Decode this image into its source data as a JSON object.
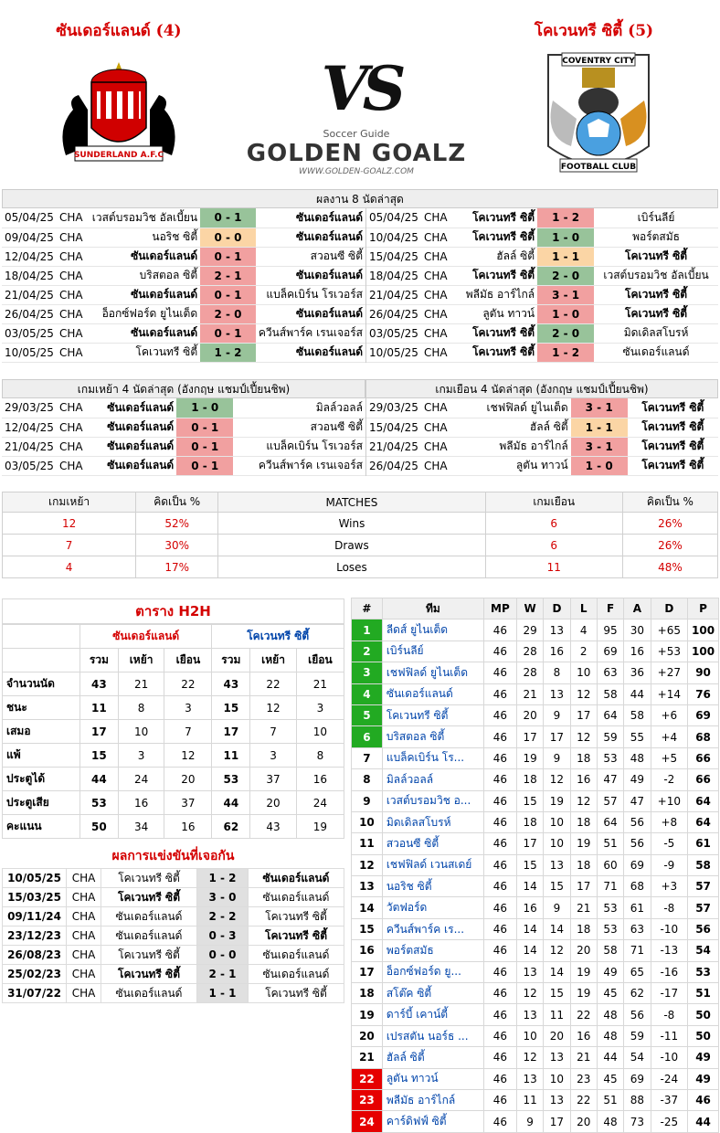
{
  "header": {
    "home_title": "ซันเดอร์แลนด์ (4)",
    "away_title": "โคเวนทรี ซิตี้ (5)",
    "vs": "VS",
    "brand_small": "Soccer Guide",
    "brand_big": "GOLDEN GOALZ",
    "brand_url": "WWW.GOLDEN-GOALZ.COM",
    "home_crest_text": "SUNDERLAND A.F.C",
    "away_crest_top": "COVENTRY CITY",
    "away_crest_bottom": "FOOTBALL CLUB",
    "colors": {
      "accent_red": "#d40000",
      "win": "#98c39a",
      "lose": "#f1a0a0",
      "draw": "#fbd5a5",
      "promotion": "#22aa22",
      "relegation": "#e60000"
    }
  },
  "last8": {
    "title": "ผลงาน 8 นัดล่าสุด",
    "home": [
      {
        "date": "05/04/25",
        "comp": "CHA",
        "h": "เวสต์บรอมวิช อัลเบี้ยน",
        "s": "0 - 1",
        "a": "ซันเดอร์แลนด์",
        "r": "win",
        "bh": false,
        "ba": true
      },
      {
        "date": "09/04/25",
        "comp": "CHA",
        "h": "นอริช ซิตี้",
        "s": "0 - 0",
        "a": "ซันเดอร์แลนด์",
        "r": "draw",
        "bh": false,
        "ba": true
      },
      {
        "date": "12/04/25",
        "comp": "CHA",
        "h": "ซันเดอร์แลนด์",
        "s": "0 - 1",
        "a": "สวอนซี ซิตี้",
        "r": "lose",
        "bh": true,
        "ba": false
      },
      {
        "date": "18/04/25",
        "comp": "CHA",
        "h": "บริสตอล ซิตี้",
        "s": "2 - 1",
        "a": "ซันเดอร์แลนด์",
        "r": "lose",
        "bh": false,
        "ba": true
      },
      {
        "date": "21/04/25",
        "comp": "CHA",
        "h": "ซันเดอร์แลนด์",
        "s": "0 - 1",
        "a": "แบล็คเบิร์น โรเวอร์ส",
        "r": "lose",
        "bh": true,
        "ba": false
      },
      {
        "date": "26/04/25",
        "comp": "CHA",
        "h": "อ็อกซ์ฟอร์ด ยูไนเต็ด",
        "s": "2 - 0",
        "a": "ซันเดอร์แลนด์",
        "r": "lose",
        "bh": false,
        "ba": true
      },
      {
        "date": "03/05/25",
        "comp": "CHA",
        "h": "ซันเดอร์แลนด์",
        "s": "0 - 1",
        "a": "ควีนส์พาร์ค เรนเจอร์ส",
        "r": "lose",
        "bh": true,
        "ba": false
      },
      {
        "date": "10/05/25",
        "comp": "CHA",
        "h": "โคเวนทรี ซิตี้",
        "s": "1 - 2",
        "a": "ซันเดอร์แลนด์",
        "r": "win",
        "bh": false,
        "ba": true
      }
    ],
    "away": [
      {
        "date": "05/04/25",
        "comp": "CHA",
        "h": "โคเวนทรี ซิตี้",
        "s": "1 - 2",
        "a": "เบิร์นลีย์",
        "r": "lose",
        "bh": true,
        "ba": false
      },
      {
        "date": "10/04/25",
        "comp": "CHA",
        "h": "โคเวนทรี ซิตี้",
        "s": "1 - 0",
        "a": "พอร์ตสมัธ",
        "r": "win",
        "bh": true,
        "ba": false
      },
      {
        "date": "15/04/25",
        "comp": "CHA",
        "h": "ฮัลล์ ซิตี้",
        "s": "1 - 1",
        "a": "โคเวนทรี ซิตี้",
        "r": "draw",
        "bh": false,
        "ba": true
      },
      {
        "date": "18/04/25",
        "comp": "CHA",
        "h": "โคเวนทรี ซิตี้",
        "s": "2 - 0",
        "a": "เวสต์บรอมวิช อัลเบี้ยน",
        "r": "win",
        "bh": true,
        "ba": false
      },
      {
        "date": "21/04/25",
        "comp": "CHA",
        "h": "พลีมัธ อาร์ไกล์",
        "s": "3 - 1",
        "a": "โคเวนทรี ซิตี้",
        "r": "lose",
        "bh": false,
        "ba": true
      },
      {
        "date": "26/04/25",
        "comp": "CHA",
        "h": "ลูตัน ทาวน์",
        "s": "1 - 0",
        "a": "โคเวนทรี ซิตี้",
        "r": "lose",
        "bh": false,
        "ba": true
      },
      {
        "date": "03/05/25",
        "comp": "CHA",
        "h": "โคเวนทรี ซิตี้",
        "s": "2 - 0",
        "a": "มิดเดิลสโบรห์",
        "r": "win",
        "bh": true,
        "ba": false
      },
      {
        "date": "10/05/25",
        "comp": "CHA",
        "h": "โคเวนทรี ซิตี้",
        "s": "1 - 2",
        "a": "ซันเดอร์แลนด์",
        "r": "lose",
        "bh": true,
        "ba": false
      }
    ]
  },
  "last4": {
    "home_title": "เกมเหย้า 4 นัดล่าสุด (อังกฤษ แชมป์เปี้ยนชิพ)",
    "away_title": "เกมเยือน 4 นัดล่าสุด (อังกฤษ แชมป์เปี้ยนชิพ)",
    "home": [
      {
        "date": "29/03/25",
        "comp": "CHA",
        "h": "ซันเดอร์แลนด์",
        "s": "1 - 0",
        "a": "มิลล์วอลล์",
        "r": "win",
        "bh": true,
        "ba": false
      },
      {
        "date": "12/04/25",
        "comp": "CHA",
        "h": "ซันเดอร์แลนด์",
        "s": "0 - 1",
        "a": "สวอนซี ซิตี้",
        "r": "lose",
        "bh": true,
        "ba": false
      },
      {
        "date": "21/04/25",
        "comp": "CHA",
        "h": "ซันเดอร์แลนด์",
        "s": "0 - 1",
        "a": "แบล็คเบิร์น โรเวอร์ส",
        "r": "lose",
        "bh": true,
        "ba": false
      },
      {
        "date": "03/05/25",
        "comp": "CHA",
        "h": "ซันเดอร์แลนด์",
        "s": "0 - 1",
        "a": "ควีนส์พาร์ค เรนเจอร์ส",
        "r": "lose",
        "bh": true,
        "ba": false
      }
    ],
    "away": [
      {
        "date": "29/03/25",
        "comp": "CHA",
        "h": "เชฟฟิลด์ ยูไนเต็ด",
        "s": "3 - 1",
        "a": "โคเวนทรี ซิตี้",
        "r": "lose",
        "bh": false,
        "ba": true
      },
      {
        "date": "15/04/25",
        "comp": "CHA",
        "h": "ฮัลล์ ซิตี้",
        "s": "1 - 1",
        "a": "โคเวนทรี ซิตี้",
        "r": "draw",
        "bh": false,
        "ba": true
      },
      {
        "date": "21/04/25",
        "comp": "CHA",
        "h": "พลีมัธ อาร์ไกล์",
        "s": "3 - 1",
        "a": "โคเวนทรี ซิตี้",
        "r": "lose",
        "bh": false,
        "ba": true
      },
      {
        "date": "26/04/25",
        "comp": "CHA",
        "h": "ลูตัน ทาวน์",
        "s": "1 - 0",
        "a": "โคเวนทรี ซิตี้",
        "r": "lose",
        "bh": false,
        "ba": true
      }
    ]
  },
  "matches": {
    "headers": [
      "เกมเหย้า",
      "คิดเป็น %",
      "MATCHES",
      "เกมเยือน",
      "คิดเป็น %"
    ],
    "rows": [
      {
        "hv": "12",
        "hp": "52%",
        "label": "Wins",
        "av": "6",
        "ap": "26%"
      },
      {
        "hv": "7",
        "hp": "30%",
        "label": "Draws",
        "av": "6",
        "ap": "26%"
      },
      {
        "hv": "4",
        "hp": "17%",
        "label": "Loses",
        "av": "11",
        "ap": "48%"
      }
    ]
  },
  "h2h": {
    "title": "ตาราง H2H",
    "home_team": "ซันเดอร์แลนด์",
    "away_team": "โคเวนทรี ซิตี้",
    "sub": [
      "รวม",
      "เหย้า",
      "เยือน",
      "รวม",
      "เหย้า",
      "เยือน"
    ],
    "rows": [
      {
        "label": "จำนวนนัด",
        "v": [
          "43",
          "21",
          "22",
          "43",
          "22",
          "21"
        ]
      },
      {
        "label": "ชนะ",
        "v": [
          "11",
          "8",
          "3",
          "15",
          "12",
          "3"
        ]
      },
      {
        "label": "เสมอ",
        "v": [
          "17",
          "10",
          "7",
          "17",
          "7",
          "10"
        ]
      },
      {
        "label": "แพ้",
        "v": [
          "15",
          "3",
          "12",
          "11",
          "3",
          "8"
        ]
      },
      {
        "label": "ประตูได้",
        "v": [
          "44",
          "24",
          "20",
          "53",
          "37",
          "16"
        ]
      },
      {
        "label": "ประตูเสีย",
        "v": [
          "53",
          "16",
          "37",
          "44",
          "20",
          "24"
        ]
      },
      {
        "label": "คะแนน",
        "v": [
          "50",
          "34",
          "16",
          "62",
          "43",
          "19"
        ]
      }
    ]
  },
  "past": {
    "title": "ผลการแข่งขันที่เจอกัน",
    "rows": [
      {
        "date": "10/05/25",
        "comp": "CHA",
        "h": "โคเวนทรี ซิตี้",
        "s": "1 - 2",
        "a": "ซันเดอร์แลนด์",
        "bh": false,
        "ba": true
      },
      {
        "date": "15/03/25",
        "comp": "CHA",
        "h": "โคเวนทรี ซิตี้",
        "s": "3 - 0",
        "a": "ซันเดอร์แลนด์",
        "bh": true,
        "ba": false
      },
      {
        "date": "09/11/24",
        "comp": "CHA",
        "h": "ซันเดอร์แลนด์",
        "s": "2 - 2",
        "a": "โคเวนทรี ซิตี้",
        "bh": false,
        "ba": false
      },
      {
        "date": "23/12/23",
        "comp": "CHA",
        "h": "ซันเดอร์แลนด์",
        "s": "0 - 3",
        "a": "โคเวนทรี ซิตี้",
        "bh": false,
        "ba": true
      },
      {
        "date": "26/08/23",
        "comp": "CHA",
        "h": "โคเวนทรี ซิตี้",
        "s": "0 - 0",
        "a": "ซันเดอร์แลนด์",
        "bh": false,
        "ba": false
      },
      {
        "date": "25/02/23",
        "comp": "CHA",
        "h": "โคเวนทรี ซิตี้",
        "s": "2 - 1",
        "a": "ซันเดอร์แลนด์",
        "bh": true,
        "ba": false
      },
      {
        "date": "31/07/22",
        "comp": "CHA",
        "h": "ซันเดอร์แลนด์",
        "s": "1 - 1",
        "a": "โคเวนทรี ซิตี้",
        "bh": false,
        "ba": false
      }
    ]
  },
  "standings": {
    "headers": [
      "#",
      "ทีม",
      "MP",
      "W",
      "D",
      "L",
      "F",
      "A",
      "D",
      "P"
    ],
    "rows": [
      {
        "pos": "1",
        "team": "ลีดส์ ยูไนเต็ด",
        "mp": "46",
        "w": "29",
        "d": "13",
        "l": "4",
        "f": "95",
        "a": "30",
        "gd": "+65",
        "p": "100",
        "zone": "g"
      },
      {
        "pos": "2",
        "team": "เบิร์นลีย์",
        "mp": "46",
        "w": "28",
        "d": "16",
        "l": "2",
        "f": "69",
        "a": "16",
        "gd": "+53",
        "p": "100",
        "zone": "g"
      },
      {
        "pos": "3",
        "team": "เชฟฟิลด์ ยูไนเต็ด",
        "mp": "46",
        "w": "28",
        "d": "8",
        "l": "10",
        "f": "63",
        "a": "36",
        "gd": "+27",
        "p": "90",
        "zone": "g"
      },
      {
        "pos": "4",
        "team": "ซันเดอร์แลนด์",
        "mp": "46",
        "w": "21",
        "d": "13",
        "l": "12",
        "f": "58",
        "a": "44",
        "gd": "+14",
        "p": "76",
        "zone": "g"
      },
      {
        "pos": "5",
        "team": "โคเวนทรี ซิตี้",
        "mp": "46",
        "w": "20",
        "d": "9",
        "l": "17",
        "f": "64",
        "a": "58",
        "gd": "+6",
        "p": "69",
        "zone": "g"
      },
      {
        "pos": "6",
        "team": "บริสตอล ซิตี้",
        "mp": "46",
        "w": "17",
        "d": "17",
        "l": "12",
        "f": "59",
        "a": "55",
        "gd": "+4",
        "p": "68",
        "zone": "g"
      },
      {
        "pos": "7",
        "team": "แบล็คเบิร์น โร...",
        "mp": "46",
        "w": "19",
        "d": "9",
        "l": "18",
        "f": "53",
        "a": "48",
        "gd": "+5",
        "p": "66",
        "zone": "n"
      },
      {
        "pos": "8",
        "team": "มิลล์วอลล์",
        "mp": "46",
        "w": "18",
        "d": "12",
        "l": "16",
        "f": "47",
        "a": "49",
        "gd": "-2",
        "p": "66",
        "zone": "n"
      },
      {
        "pos": "9",
        "team": "เวสต์บรอมวิช อ...",
        "mp": "46",
        "w": "15",
        "d": "19",
        "l": "12",
        "f": "57",
        "a": "47",
        "gd": "+10",
        "p": "64",
        "zone": "n"
      },
      {
        "pos": "10",
        "team": "มิดเดิลสโบรห์",
        "mp": "46",
        "w": "18",
        "d": "10",
        "l": "18",
        "f": "64",
        "a": "56",
        "gd": "+8",
        "p": "64",
        "zone": "n"
      },
      {
        "pos": "11",
        "team": "สวอนซี ซิตี้",
        "mp": "46",
        "w": "17",
        "d": "10",
        "l": "19",
        "f": "51",
        "a": "56",
        "gd": "-5",
        "p": "61",
        "zone": "n"
      },
      {
        "pos": "12",
        "team": "เชฟฟิลด์ เวนสเดย์",
        "mp": "46",
        "w": "15",
        "d": "13",
        "l": "18",
        "f": "60",
        "a": "69",
        "gd": "-9",
        "p": "58",
        "zone": "n"
      },
      {
        "pos": "13",
        "team": "นอริช ซิตี้",
        "mp": "46",
        "w": "14",
        "d": "15",
        "l": "17",
        "f": "71",
        "a": "68",
        "gd": "+3",
        "p": "57",
        "zone": "n"
      },
      {
        "pos": "14",
        "team": "วัตฟอร์ด",
        "mp": "46",
        "w": "16",
        "d": "9",
        "l": "21",
        "f": "53",
        "a": "61",
        "gd": "-8",
        "p": "57",
        "zone": "n"
      },
      {
        "pos": "15",
        "team": "ควีนส์พาร์ค เร...",
        "mp": "46",
        "w": "14",
        "d": "14",
        "l": "18",
        "f": "53",
        "a": "63",
        "gd": "-10",
        "p": "56",
        "zone": "n"
      },
      {
        "pos": "16",
        "team": "พอร์ตสมัธ",
        "mp": "46",
        "w": "14",
        "d": "12",
        "l": "20",
        "f": "58",
        "a": "71",
        "gd": "-13",
        "p": "54",
        "zone": "n"
      },
      {
        "pos": "17",
        "team": "อ็อกซ์ฟอร์ด ยู...",
        "mp": "46",
        "w": "13",
        "d": "14",
        "l": "19",
        "f": "49",
        "a": "65",
        "gd": "-16",
        "p": "53",
        "zone": "n"
      },
      {
        "pos": "18",
        "team": "สโต๊ค ซิตี้",
        "mp": "46",
        "w": "12",
        "d": "15",
        "l": "19",
        "f": "45",
        "a": "62",
        "gd": "-17",
        "p": "51",
        "zone": "n"
      },
      {
        "pos": "19",
        "team": "ดาร์บี้ เคาน์ตี้",
        "mp": "46",
        "w": "13",
        "d": "11",
        "l": "22",
        "f": "48",
        "a": "56",
        "gd": "-8",
        "p": "50",
        "zone": "n"
      },
      {
        "pos": "20",
        "team": "เปรสตัน นอร์ธ ...",
        "mp": "46",
        "w": "10",
        "d": "20",
        "l": "16",
        "f": "48",
        "a": "59",
        "gd": "-11",
        "p": "50",
        "zone": "n"
      },
      {
        "pos": "21",
        "team": "ฮัลล์ ซิตี้",
        "mp": "46",
        "w": "12",
        "d": "13",
        "l": "21",
        "f": "44",
        "a": "54",
        "gd": "-10",
        "p": "49",
        "zone": "n"
      },
      {
        "pos": "22",
        "team": "ลูตัน ทาวน์",
        "mp": "46",
        "w": "13",
        "d": "10",
        "l": "23",
        "f": "45",
        "a": "69",
        "gd": "-24",
        "p": "49",
        "zone": "r"
      },
      {
        "pos": "23",
        "team": "พลีมัธ อาร์ไกล์",
        "mp": "46",
        "w": "11",
        "d": "13",
        "l": "22",
        "f": "51",
        "a": "88",
        "gd": "-37",
        "p": "46",
        "zone": "r"
      },
      {
        "pos": "24",
        "team": "คาร์ดิฟฟ์ ซิตี้",
        "mp": "46",
        "w": "9",
        "d": "17",
        "l": "20",
        "f": "48",
        "a": "73",
        "gd": "-25",
        "p": "44",
        "zone": "r"
      }
    ]
  }
}
